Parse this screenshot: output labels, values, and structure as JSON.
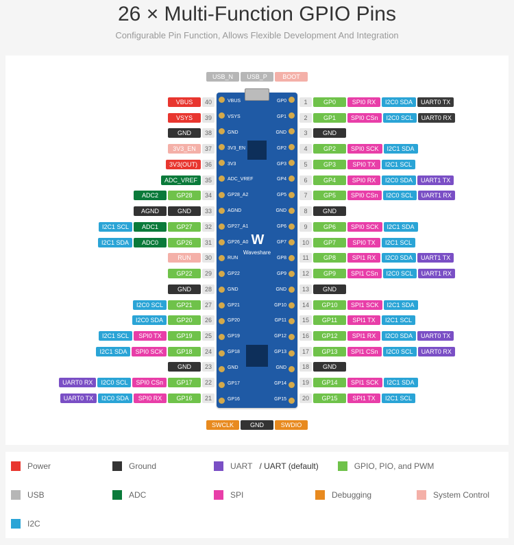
{
  "header": {
    "title": "26 × Multi-Function GPIO Pins",
    "subtitle": "Configurable Pin Function, Allows Flexible Development And Integration"
  },
  "colors": {
    "power": "#e8362f",
    "ground": "#333333",
    "uart": "#7a4fc5",
    "uart_default": "#3a3a3a",
    "gpio": "#6fc24a",
    "usb": "#b6b6b6",
    "adc": "#0a7a3a",
    "spi": "#e83ea8",
    "debug": "#e88a1f",
    "sysctrl": "#f4b0a8",
    "i2c": "#2aa4d6"
  },
  "top_tags": [
    {
      "text": "USB_N",
      "color": "usb"
    },
    {
      "text": "USB_P",
      "color": "usb"
    },
    {
      "text": "BOOT",
      "color": "sysctrl"
    }
  ],
  "bot_tags": [
    {
      "text": "SWCLK",
      "color": "debug"
    },
    {
      "text": "GND",
      "color": "ground"
    },
    {
      "text": "SWDIO",
      "color": "debug"
    }
  ],
  "silks_left": [
    "VBUS",
    "VSYS",
    "GND",
    "3V3_EN",
    "3V3",
    "ADC_VREF",
    "GP28_A2",
    "AGND",
    "GP27_A1",
    "GP26_A0",
    "RUN",
    "GP22",
    "GND",
    "GP21",
    "GP20",
    "GP19",
    "GP18",
    "GND",
    "GP17",
    "GP16"
  ],
  "silks_right": [
    "GP0",
    "GP1",
    "GND",
    "GP2",
    "GP3",
    "GP4",
    "GP5",
    "GND",
    "GP6",
    "GP7",
    "GP8",
    "GP9",
    "GND",
    "GP10",
    "GP11",
    "GP12",
    "GP13",
    "GND",
    "GP14",
    "GP15"
  ],
  "left": [
    {
      "num": 40,
      "tags": [
        {
          "t": "VBUS",
          "c": "power"
        }
      ]
    },
    {
      "num": 39,
      "tags": [
        {
          "t": "VSYS",
          "c": "power"
        }
      ]
    },
    {
      "num": 38,
      "tags": [
        {
          "t": "GND",
          "c": "ground"
        }
      ]
    },
    {
      "num": 37,
      "tags": [
        {
          "t": "3V3_EN",
          "c": "sysctrl"
        }
      ]
    },
    {
      "num": 36,
      "tags": [
        {
          "t": "3V3(OUT)",
          "c": "power"
        }
      ]
    },
    {
      "num": 35,
      "tags": [
        {
          "t": "ADC_VREF",
          "c": "adc"
        }
      ]
    },
    {
      "num": 34,
      "tags": [
        {
          "t": "GP28",
          "c": "gpio"
        },
        {
          "t": "ADC2",
          "c": "adc"
        }
      ]
    },
    {
      "num": 33,
      "tags": [
        {
          "t": "GND",
          "c": "ground"
        },
        {
          "t": "AGND",
          "c": "ground"
        }
      ]
    },
    {
      "num": 32,
      "tags": [
        {
          "t": "GP27",
          "c": "gpio"
        },
        {
          "t": "ADC1",
          "c": "adc"
        },
        {
          "t": "I2C1 SCL",
          "c": "i2c"
        }
      ]
    },
    {
      "num": 31,
      "tags": [
        {
          "t": "GP26",
          "c": "gpio"
        },
        {
          "t": "ADC0",
          "c": "adc"
        },
        {
          "t": "I2C1 SDA",
          "c": "i2c"
        }
      ]
    },
    {
      "num": 30,
      "tags": [
        {
          "t": "RUN",
          "c": "sysctrl"
        }
      ]
    },
    {
      "num": 29,
      "tags": [
        {
          "t": "GP22",
          "c": "gpio"
        }
      ]
    },
    {
      "num": 28,
      "tags": [
        {
          "t": "GND",
          "c": "ground"
        }
      ]
    },
    {
      "num": 27,
      "tags": [
        {
          "t": "GP21",
          "c": "gpio"
        },
        {
          "t": "I2C0 SCL",
          "c": "i2c"
        }
      ]
    },
    {
      "num": 26,
      "tags": [
        {
          "t": "GP20",
          "c": "gpio"
        },
        {
          "t": "I2C0 SDA",
          "c": "i2c"
        }
      ]
    },
    {
      "num": 25,
      "tags": [
        {
          "t": "GP19",
          "c": "gpio"
        },
        {
          "t": "SPI0 TX",
          "c": "spi"
        },
        {
          "t": "I2C1 SCL",
          "c": "i2c"
        }
      ]
    },
    {
      "num": 24,
      "tags": [
        {
          "t": "GP18",
          "c": "gpio"
        },
        {
          "t": "SPI0 SCK",
          "c": "spi"
        },
        {
          "t": "I2C1 SDA",
          "c": "i2c"
        }
      ]
    },
    {
      "num": 23,
      "tags": [
        {
          "t": "GND",
          "c": "ground"
        }
      ]
    },
    {
      "num": 22,
      "tags": [
        {
          "t": "GP17",
          "c": "gpio"
        },
        {
          "t": "SPI0 CSn",
          "c": "spi"
        },
        {
          "t": "I2C0 SCL",
          "c": "i2c"
        },
        {
          "t": "UART0 RX",
          "c": "uart"
        }
      ]
    },
    {
      "num": 21,
      "tags": [
        {
          "t": "GP16",
          "c": "gpio"
        },
        {
          "t": "SPI0 RX",
          "c": "spi"
        },
        {
          "t": "I2C0 SDA",
          "c": "i2c"
        },
        {
          "t": "UART0 TX",
          "c": "uart"
        }
      ]
    }
  ],
  "right": [
    {
      "num": 1,
      "tags": [
        {
          "t": "GP0",
          "c": "gpio"
        },
        {
          "t": "SPI0 RX",
          "c": "spi"
        },
        {
          "t": "I2C0 SDA",
          "c": "i2c"
        },
        {
          "t": "UART0 TX",
          "c": "uart_default"
        }
      ]
    },
    {
      "num": 2,
      "tags": [
        {
          "t": "GP1",
          "c": "gpio"
        },
        {
          "t": "SPI0 CSn",
          "c": "spi"
        },
        {
          "t": "I2C0 SCL",
          "c": "i2c"
        },
        {
          "t": "UART0 RX",
          "c": "uart_default"
        }
      ]
    },
    {
      "num": 3,
      "tags": [
        {
          "t": "GND",
          "c": "ground"
        }
      ]
    },
    {
      "num": 4,
      "tags": [
        {
          "t": "GP2",
          "c": "gpio"
        },
        {
          "t": "SPI0 SCK",
          "c": "spi"
        },
        {
          "t": "I2C1 SDA",
          "c": "i2c"
        }
      ]
    },
    {
      "num": 5,
      "tags": [
        {
          "t": "GP3",
          "c": "gpio"
        },
        {
          "t": "SPI0 TX",
          "c": "spi"
        },
        {
          "t": "I2C1 SCL",
          "c": "i2c"
        }
      ]
    },
    {
      "num": 6,
      "tags": [
        {
          "t": "GP4",
          "c": "gpio"
        },
        {
          "t": "SPI0 RX",
          "c": "spi"
        },
        {
          "t": "I2C0 SDA",
          "c": "i2c"
        },
        {
          "t": "UART1 TX",
          "c": "uart"
        }
      ]
    },
    {
      "num": 7,
      "tags": [
        {
          "t": "GP5",
          "c": "gpio"
        },
        {
          "t": "SPI0 CSn",
          "c": "spi"
        },
        {
          "t": "I2C0 SCL",
          "c": "i2c"
        },
        {
          "t": "UART1 RX",
          "c": "uart"
        }
      ]
    },
    {
      "num": 8,
      "tags": [
        {
          "t": "GND",
          "c": "ground"
        }
      ]
    },
    {
      "num": 9,
      "tags": [
        {
          "t": "GP6",
          "c": "gpio"
        },
        {
          "t": "SPI0 SCK",
          "c": "spi"
        },
        {
          "t": "I2C1 SDA",
          "c": "i2c"
        }
      ]
    },
    {
      "num": 10,
      "tags": [
        {
          "t": "GP7",
          "c": "gpio"
        },
        {
          "t": "SPI0 TX",
          "c": "spi"
        },
        {
          "t": "I2C1 SCL",
          "c": "i2c"
        }
      ]
    },
    {
      "num": 11,
      "tags": [
        {
          "t": "GP8",
          "c": "gpio"
        },
        {
          "t": "SPI1 RX",
          "c": "spi"
        },
        {
          "t": "I2C0 SDA",
          "c": "i2c"
        },
        {
          "t": "UART1 TX",
          "c": "uart"
        }
      ]
    },
    {
      "num": 12,
      "tags": [
        {
          "t": "GP9",
          "c": "gpio"
        },
        {
          "t": "SPI1 CSn",
          "c": "spi"
        },
        {
          "t": "I2C0 SCL",
          "c": "i2c"
        },
        {
          "t": "UART1 RX",
          "c": "uart"
        }
      ]
    },
    {
      "num": 13,
      "tags": [
        {
          "t": "GND",
          "c": "ground"
        }
      ]
    },
    {
      "num": 14,
      "tags": [
        {
          "t": "GP10",
          "c": "gpio"
        },
        {
          "t": "SPI1 SCK",
          "c": "spi"
        },
        {
          "t": "I2C1 SDA",
          "c": "i2c"
        }
      ]
    },
    {
      "num": 15,
      "tags": [
        {
          "t": "GP11",
          "c": "gpio"
        },
        {
          "t": "SPI1 TX",
          "c": "spi"
        },
        {
          "t": "I2C1 SCL",
          "c": "i2c"
        }
      ]
    },
    {
      "num": 16,
      "tags": [
        {
          "t": "GP12",
          "c": "gpio"
        },
        {
          "t": "SPI1 RX",
          "c": "spi"
        },
        {
          "t": "I2C0 SDA",
          "c": "i2c"
        },
        {
          "t": "UART0 TX",
          "c": "uart"
        }
      ]
    },
    {
      "num": 17,
      "tags": [
        {
          "t": "GP13",
          "c": "gpio"
        },
        {
          "t": "SPI1 CSn",
          "c": "spi"
        },
        {
          "t": "I2C0 SCL",
          "c": "i2c"
        },
        {
          "t": "UART0 RX",
          "c": "uart"
        }
      ]
    },
    {
      "num": 18,
      "tags": [
        {
          "t": "GND",
          "c": "ground"
        }
      ]
    },
    {
      "num": 19,
      "tags": [
        {
          "t": "GP14",
          "c": "gpio"
        },
        {
          "t": "SPI1 SCK",
          "c": "spi"
        },
        {
          "t": "I2C1 SDA",
          "c": "i2c"
        }
      ]
    },
    {
      "num": 20,
      "tags": [
        {
          "t": "GP15",
          "c": "gpio"
        },
        {
          "t": "SPI1 TX",
          "c": "spi"
        },
        {
          "t": "I2C1 SCL",
          "c": "i2c"
        }
      ]
    }
  ],
  "legend": [
    {
      "color": "power",
      "label": "Power"
    },
    {
      "color": "ground",
      "label": "Ground"
    },
    {
      "color": "uart",
      "label": "UART",
      "extra": " / UART (default)"
    },
    {
      "color": "gpio",
      "label": "GPIO, PIO, and PWM"
    },
    {
      "color": "usb",
      "label": "USB"
    },
    {
      "color": "adc",
      "label": "ADC"
    },
    {
      "color": "spi",
      "label": "SPI"
    },
    {
      "color": "debug",
      "label": "Debugging"
    },
    {
      "color": "sysctrl",
      "label": "System Control"
    },
    {
      "color": "i2c",
      "label": "I2C"
    }
  ]
}
